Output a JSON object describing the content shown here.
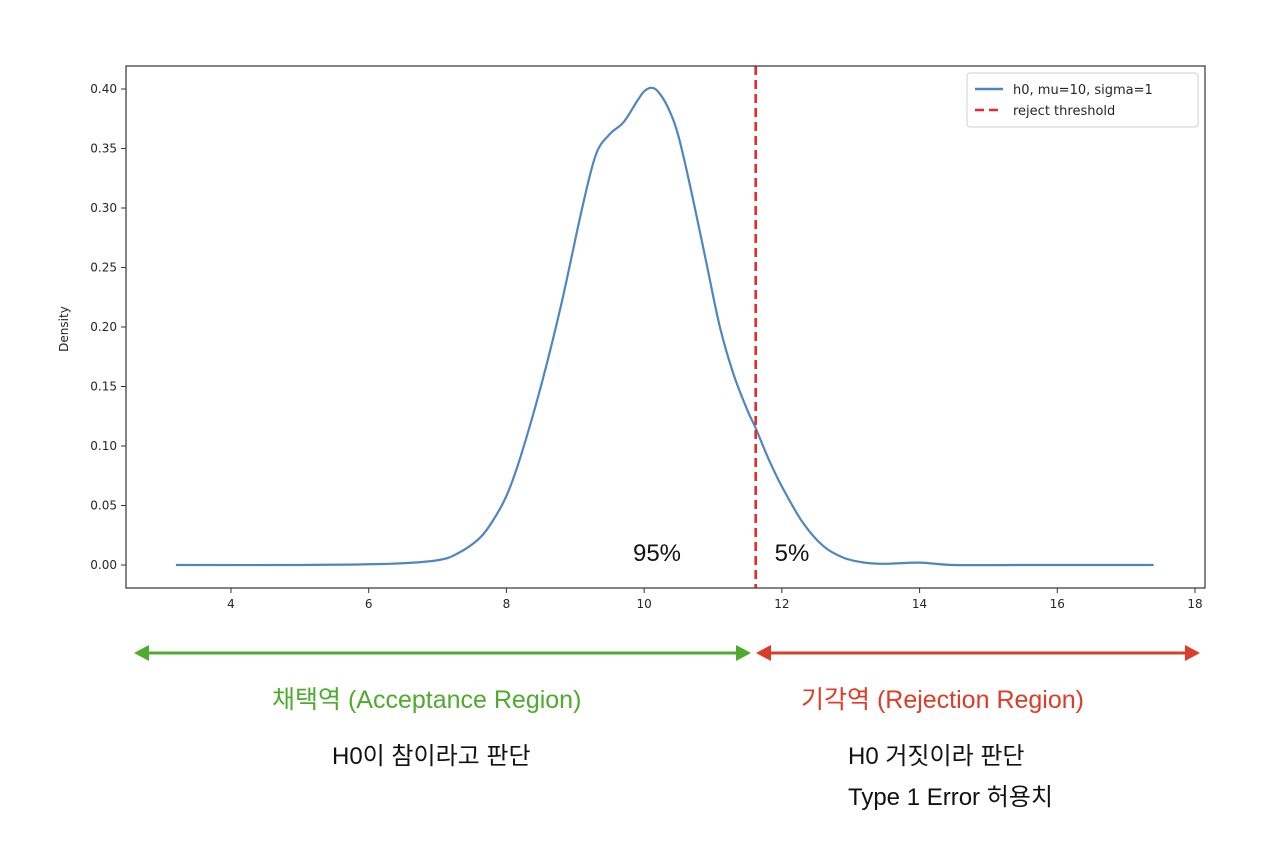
{
  "chart_data": {
    "type": "line",
    "title": "",
    "xlabel": "",
    "ylabel": "Density",
    "xlim": [
      2.5,
      18.15
    ],
    "ylim": [
      -0.02,
      0.42
    ],
    "xticks": [
      4,
      6,
      8,
      10,
      12,
      14,
      16,
      18
    ],
    "yticks": [
      0.0,
      0.05,
      0.1,
      0.15,
      0.2,
      0.25,
      0.3,
      0.35,
      0.4
    ],
    "ytick_labels": [
      "0.00",
      "0.05",
      "0.10",
      "0.15",
      "0.20",
      "0.25",
      "0.30",
      "0.35",
      "0.40"
    ],
    "grid": false,
    "legend_position": "upper right",
    "series": [
      {
        "name": "h0, mu=10, sigma=1",
        "color": "#4f86c1",
        "style": "solid",
        "x": [
          3.2,
          5.0,
          6.3,
          7.0,
          7.3,
          7.6,
          7.8,
          8.0,
          8.2,
          8.5,
          8.8,
          9.1,
          9.3,
          9.5,
          9.7,
          9.9,
          10.0,
          10.1,
          10.2,
          10.35,
          10.5,
          10.7,
          10.9,
          11.1,
          11.3,
          11.5,
          11.62,
          11.8,
          12.0,
          12.3,
          12.6,
          12.9,
          13.2,
          13.5,
          14.0,
          14.5,
          15.5,
          17.4
        ],
        "y": [
          0.0,
          0.0,
          0.001,
          0.004,
          0.01,
          0.022,
          0.037,
          0.058,
          0.09,
          0.15,
          0.22,
          0.3,
          0.345,
          0.362,
          0.372,
          0.39,
          0.398,
          0.401,
          0.398,
          0.384,
          0.36,
          0.31,
          0.255,
          0.2,
          0.16,
          0.13,
          0.115,
          0.09,
          0.066,
          0.036,
          0.016,
          0.006,
          0.002,
          0.001,
          0.002,
          0.0,
          0.0,
          0.0
        ]
      },
      {
        "name": "reject threshold",
        "color": "#e8282b",
        "style": "dashed",
        "x": [
          11.62,
          11.62
        ],
        "y": [
          -0.02,
          0.42
        ]
      }
    ],
    "annotations": [
      {
        "text": "95%",
        "x": 10.0,
        "y": 0.01
      },
      {
        "text": "5%",
        "x": 12.4,
        "y": 0.01
      }
    ]
  },
  "legend": {
    "items": [
      {
        "label": "h0, mu=10, sigma=1",
        "color": "#4f86c1",
        "style": "solid"
      },
      {
        "label": "reject threshold",
        "color": "#e8282b",
        "style": "dashed"
      }
    ]
  },
  "annotations": {
    "acceptance_pct": "95%",
    "rejection_pct": "5%"
  },
  "regions": {
    "acceptance": {
      "label": "채택역 (Acceptance Region)",
      "color": "#4fab2d",
      "note": "H0이 참이라고 판단"
    },
    "rejection": {
      "label": "기각역 (Rejection Region)",
      "color": "#db3d28",
      "note_line1": "H0 거짓이라 판단",
      "note_line2": "Type 1 Error 허용치"
    }
  }
}
